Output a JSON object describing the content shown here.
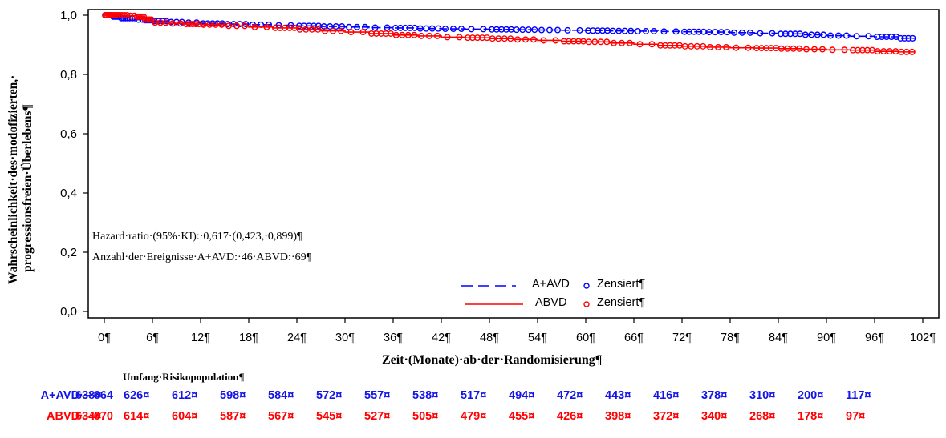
{
  "chart_data": {
    "type": "line",
    "subtype": "kaplan-meier",
    "title": "",
    "xlabel": "Zeit·(Monate)·ab·der·Randomisierung¶",
    "ylabel_lines": [
      "Wahrscheinlichkeit·des·modofizierten,·",
      "progressionsfreien·Überlebens¶"
    ],
    "xlim": [
      0,
      102
    ],
    "ylim": [
      0,
      1
    ],
    "x_ticks": [
      0,
      6,
      12,
      18,
      24,
      30,
      36,
      42,
      48,
      54,
      60,
      66,
      72,
      78,
      84,
      90,
      96,
      102
    ],
    "x_tick_labels": [
      "0¶",
      "6¶",
      "12¶",
      "18¶",
      "24¶",
      "30¶",
      "36¶",
      "42¶",
      "48¶",
      "54¶",
      "60¶",
      "66¶",
      "72¶",
      "78¶",
      "84¶",
      "90¶",
      "96¶",
      "102¶"
    ],
    "y_ticks": [
      0.0,
      0.2,
      0.4,
      0.6,
      0.8,
      1.0
    ],
    "y_tick_labels": [
      "0,0",
      "0,2",
      "0,4",
      "0,6",
      "0,8",
      "1,0"
    ],
    "grid": false,
    "legend": {
      "placement": "bottom-center",
      "entries": [
        {
          "label": "A+AVD",
          "censor_label": "Zensiert¶",
          "style": "dashed",
          "color": "#0000ff"
        },
        {
          "label": "ABVD",
          "censor_label": "Zensiert¶",
          "style": "solid",
          "color": "#ff0000"
        }
      ]
    },
    "annotations": [
      "Hazard·ratio·(95%·KI):·0,617·(0,423,·0,899)¶",
      "Anzahl·der·Ereignisse·A+AVD:·46·ABVD:·69¶"
    ],
    "series": [
      {
        "name": "A+AVD",
        "color": "#0000ff",
        "style": "dashed",
        "x": [
          0,
          1,
          2,
          3,
          4,
          5,
          6,
          8,
          10,
          12,
          15,
          18,
          21,
          24,
          27,
          30,
          33,
          36,
          39,
          42,
          45,
          48,
          51,
          54,
          57,
          60,
          63,
          66,
          69,
          72,
          75,
          78,
          81,
          84,
          87,
          90,
          93,
          96,
          99,
          101
        ],
        "y": [
          1.0,
          0.995,
          0.99,
          0.99,
          0.985,
          0.983,
          0.98,
          0.977,
          0.975,
          0.972,
          0.97,
          0.968,
          0.966,
          0.964,
          0.962,
          0.96,
          0.958,
          0.957,
          0.955,
          0.954,
          0.953,
          0.952,
          0.951,
          0.95,
          0.949,
          0.948,
          0.947,
          0.946,
          0.945,
          0.944,
          0.943,
          0.941,
          0.939,
          0.937,
          0.934,
          0.931,
          0.929,
          0.927,
          0.922,
          0.921
        ]
      },
      {
        "name": "ABVD",
        "color": "#ff0000",
        "style": "solid",
        "x": [
          0,
          1,
          2,
          3,
          4,
          5,
          6,
          8,
          10,
          12,
          15,
          18,
          21,
          24,
          27,
          30,
          33,
          36,
          39,
          42,
          45,
          48,
          51,
          54,
          57,
          60,
          63,
          66,
          69,
          72,
          75,
          78,
          81,
          84,
          87,
          90,
          93,
          96,
          99,
          101
        ],
        "y": [
          1.0,
          1.0,
          1.0,
          0.998,
          0.995,
          0.985,
          0.975,
          0.972,
          0.97,
          0.968,
          0.964,
          0.96,
          0.957,
          0.952,
          0.947,
          0.943,
          0.938,
          0.933,
          0.93,
          0.926,
          0.924,
          0.921,
          0.918,
          0.915,
          0.912,
          0.91,
          0.906,
          0.902,
          0.898,
          0.895,
          0.892,
          0.89,
          0.889,
          0.887,
          0.885,
          0.883,
          0.882,
          0.878,
          0.876,
          0.875
        ]
      }
    ],
    "risk_table": {
      "title": "Umfang·Risikopopulation¶",
      "rows": [
        {
          "label": "A+AVD·–·664",
          "color": "#1414e6",
          "values": [
            "638¤",
            "626¤",
            "612¤",
            "598¤",
            "584¤",
            "572¤",
            "557¤",
            "538¤",
            "517¤",
            "494¤",
            "472¤",
            "443¤",
            "416¤",
            "378¤",
            "310¤",
            "200¤",
            "117¤"
          ]
        },
        {
          "label": "ABVD·–·670",
          "color": "#ff0000",
          "values": [
            "634¤",
            "614¤",
            "604¤",
            "587¤",
            "567¤",
            "545¤",
            "527¤",
            "505¤",
            "479¤",
            "455¤",
            "426¤",
            "398¤",
            "372¤",
            "340¤",
            "268¤",
            "178¤",
            "97¤"
          ]
        }
      ]
    }
  }
}
